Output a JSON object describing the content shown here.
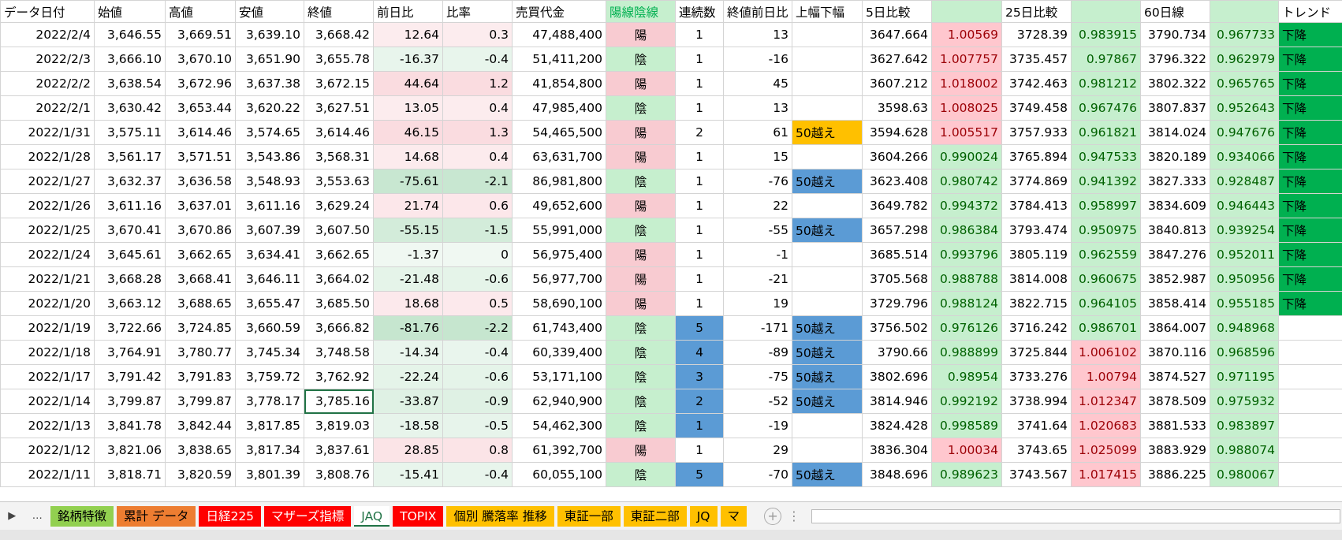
{
  "table": {
    "header": [
      "データ日付",
      "始値",
      "高値",
      "安値",
      "終値",
      "前日比",
      "比率",
      "売買代金",
      "陽線陰線",
      "連続数",
      "終値前日比",
      "上幅下幅",
      "5日比較",
      "",
      "25日比較",
      "",
      "60日線",
      "",
      "トレンド"
    ],
    "rows": [
      [
        "2022/2/4",
        "3,646.55",
        "3,669.51",
        "3,639.10",
        "3,668.42",
        "12.64",
        "0.3",
        "47,488,400",
        "陽",
        "1",
        "13",
        "",
        "3647.664",
        "1.00569",
        "3728.39",
        "0.983915",
        "3790.734",
        "0.967733",
        "下降"
      ],
      [
        "2022/2/3",
        "3,666.10",
        "3,670.10",
        "3,651.90",
        "3,655.78",
        "-16.37",
        "-0.4",
        "51,411,200",
        "陰",
        "1",
        "-16",
        "",
        "3627.642",
        "1.007757",
        "3735.457",
        "0.97867",
        "3796.322",
        "0.962979",
        "下降"
      ],
      [
        "2022/2/2",
        "3,638.54",
        "3,672.96",
        "3,637.38",
        "3,672.15",
        "44.64",
        "1.2",
        "41,854,800",
        "陽",
        "1",
        "45",
        "",
        "3607.212",
        "1.018002",
        "3742.463",
        "0.981212",
        "3802.322",
        "0.965765",
        "下降"
      ],
      [
        "2022/2/1",
        "3,630.42",
        "3,653.44",
        "3,620.22",
        "3,627.51",
        "13.05",
        "0.4",
        "47,985,400",
        "陰",
        "1",
        "13",
        "",
        "3598.63",
        "1.008025",
        "3749.458",
        "0.967476",
        "3807.837",
        "0.952643",
        "下降"
      ],
      [
        "2022/1/31",
        "3,575.11",
        "3,614.46",
        "3,574.65",
        "3,614.46",
        "46.15",
        "1.3",
        "54,465,500",
        "陽",
        "2",
        "61",
        "50越え",
        "3594.628",
        "1.005517",
        "3757.933",
        "0.961821",
        "3814.024",
        "0.947676",
        "下降"
      ],
      [
        "2022/1/28",
        "3,561.17",
        "3,571.51",
        "3,543.86",
        "3,568.31",
        "14.68",
        "0.4",
        "63,631,700",
        "陽",
        "1",
        "15",
        "",
        "3604.266",
        "0.990024",
        "3765.894",
        "0.947533",
        "3820.189",
        "0.934066",
        "下降"
      ],
      [
        "2022/1/27",
        "3,632.37",
        "3,636.58",
        "3,548.93",
        "3,553.63",
        "-75.61",
        "-2.1",
        "86,981,800",
        "陰",
        "1",
        "-76",
        "50越え",
        "3623.408",
        "0.980742",
        "3774.869",
        "0.941392",
        "3827.333",
        "0.928487",
        "下降"
      ],
      [
        "2022/1/26",
        "3,611.16",
        "3,637.01",
        "3,611.16",
        "3,629.24",
        "21.74",
        "0.6",
        "49,652,600",
        "陽",
        "1",
        "22",
        "",
        "3649.782",
        "0.994372",
        "3784.413",
        "0.958997",
        "3834.609",
        "0.946443",
        "下降"
      ],
      [
        "2022/1/25",
        "3,670.41",
        "3,670.86",
        "3,607.39",
        "3,607.50",
        "-55.15",
        "-1.5",
        "55,991,000",
        "陰",
        "1",
        "-55",
        "50越え",
        "3657.298",
        "0.986384",
        "3793.474",
        "0.950975",
        "3840.813",
        "0.939254",
        "下降"
      ],
      [
        "2022/1/24",
        "3,645.61",
        "3,662.65",
        "3,634.41",
        "3,662.65",
        "-1.37",
        "0",
        "56,975,400",
        "陽",
        "1",
        "-1",
        "",
        "3685.514",
        "0.993796",
        "3805.119",
        "0.962559",
        "3847.276",
        "0.952011",
        "下降"
      ],
      [
        "2022/1/21",
        "3,668.28",
        "3,668.41",
        "3,646.11",
        "3,664.02",
        "-21.48",
        "-0.6",
        "56,977,700",
        "陽",
        "1",
        "-21",
        "",
        "3705.568",
        "0.988788",
        "3814.008",
        "0.960675",
        "3852.987",
        "0.950956",
        "下降"
      ],
      [
        "2022/1/20",
        "3,663.12",
        "3,688.65",
        "3,655.47",
        "3,685.50",
        "18.68",
        "0.5",
        "58,690,100",
        "陽",
        "1",
        "19",
        "",
        "3729.796",
        "0.988124",
        "3822.715",
        "0.964105",
        "3858.414",
        "0.955185",
        "下降"
      ],
      [
        "2022/1/19",
        "3,722.66",
        "3,724.85",
        "3,660.59",
        "3,666.82",
        "-81.76",
        "-2.2",
        "61,743,400",
        "陰",
        "5",
        "-171",
        "50越え",
        "3756.502",
        "0.976126",
        "3716.242",
        "0.986701",
        "3864.007",
        "0.948968",
        ""
      ],
      [
        "2022/1/18",
        "3,764.91",
        "3,780.77",
        "3,745.34",
        "3,748.58",
        "-14.34",
        "-0.4",
        "60,339,400",
        "陰",
        "4",
        "-89",
        "50越え",
        "3790.66",
        "0.988899",
        "3725.844",
        "1.006102",
        "3870.116",
        "0.968596",
        ""
      ],
      [
        "2022/1/17",
        "3,791.42",
        "3,791.83",
        "3,759.72",
        "3,762.92",
        "-22.24",
        "-0.6",
        "53,171,100",
        "陰",
        "3",
        "-75",
        "50越え",
        "3802.696",
        "0.98954",
        "3733.276",
        "1.00794",
        "3874.527",
        "0.971195",
        ""
      ],
      [
        "2022/1/14",
        "3,799.87",
        "3,799.87",
        "3,778.17",
        "3,785.16",
        "-33.87",
        "-0.9",
        "62,940,900",
        "陰",
        "2",
        "-52",
        "50越え",
        "3814.946",
        "0.992192",
        "3738.994",
        "1.012347",
        "3878.509",
        "0.975932",
        ""
      ],
      [
        "2022/1/13",
        "3,841.78",
        "3,842.44",
        "3,817.85",
        "3,819.03",
        "-18.58",
        "-0.5",
        "54,462,300",
        "陰",
        "1",
        "-19",
        "",
        "3824.428",
        "0.998589",
        "3741.64",
        "1.020683",
        "3881.533",
        "0.983897",
        ""
      ],
      [
        "2022/1/12",
        "3,821.06",
        "3,838.65",
        "3,817.34",
        "3,837.61",
        "28.85",
        "0.8",
        "61,392,700",
        "陽",
        "1",
        "29",
        "",
        "3836.304",
        "1.00034",
        "3743.65",
        "1.025099",
        "3883.929",
        "0.988074",
        ""
      ],
      [
        "2022/1/11",
        "3,818.71",
        "3,820.59",
        "3,801.39",
        "3,808.76",
        "-15.41",
        "-0.4",
        "60,055,100",
        "陰",
        "5",
        "-70",
        "50越え",
        "3848.696",
        "0.989623",
        "3743.567",
        "1.017415",
        "3886.225",
        "0.980067",
        ""
      ]
    ],
    "highlights": [
      {
        "row": 4,
        "col": 11,
        "color": "#ffc000"
      },
      {
        "row": 6,
        "col": 11,
        "color": "#5b9bd5"
      },
      {
        "row": 8,
        "col": 11,
        "color": "#5b9bd5"
      },
      {
        "row": 12,
        "col": 9,
        "color": "#5b9bd5"
      },
      {
        "row": 12,
        "col": 11,
        "color": "#5b9bd5"
      },
      {
        "row": 13,
        "col": 9,
        "color": "#5b9bd5"
      },
      {
        "row": 13,
        "col": 11,
        "color": "#5b9bd5"
      },
      {
        "row": 14,
        "col": 9,
        "color": "#5b9bd5"
      },
      {
        "row": 14,
        "col": 11,
        "color": "#5b9bd5"
      },
      {
        "row": 15,
        "col": 9,
        "color": "#5b9bd5"
      },
      {
        "row": 15,
        "col": 11,
        "color": "#5b9bd5"
      },
      {
        "row": 16,
        "col": 9,
        "color": "#5b9bd5"
      },
      {
        "row": 18,
        "col": 9,
        "color": "#5b9bd5"
      },
      {
        "row": 18,
        "col": 11,
        "color": "#5b9bd5"
      }
    ]
  },
  "tabs": [
    {
      "label": "銘柄特徴",
      "color": "#92d050",
      "text": "#000"
    },
    {
      "label": "累計 データ",
      "color": "#ed7d31",
      "text": "#000"
    },
    {
      "label": "日経225",
      "color": "#ff0000",
      "text": "#fff"
    },
    {
      "label": "マザーズ指標",
      "color": "#ff0000",
      "text": "#fff"
    },
    {
      "label": "JAQ",
      "color": "#ffffff",
      "text": "#217346",
      "active": true
    },
    {
      "label": "TOPIX",
      "color": "#ff0000",
      "text": "#fff"
    },
    {
      "label": "個別 騰落率 推移",
      "color": "#ffc000",
      "text": "#000"
    },
    {
      "label": "東証一部",
      "color": "#ffc000",
      "text": "#000"
    },
    {
      "label": "東証二部",
      "color": "#ffc000",
      "text": "#000"
    },
    {
      "label": "JQ",
      "color": "#ffc000",
      "text": "#000"
    },
    {
      "label": "マ",
      "color": "#ffc000",
      "text": "#000"
    }
  ]
}
